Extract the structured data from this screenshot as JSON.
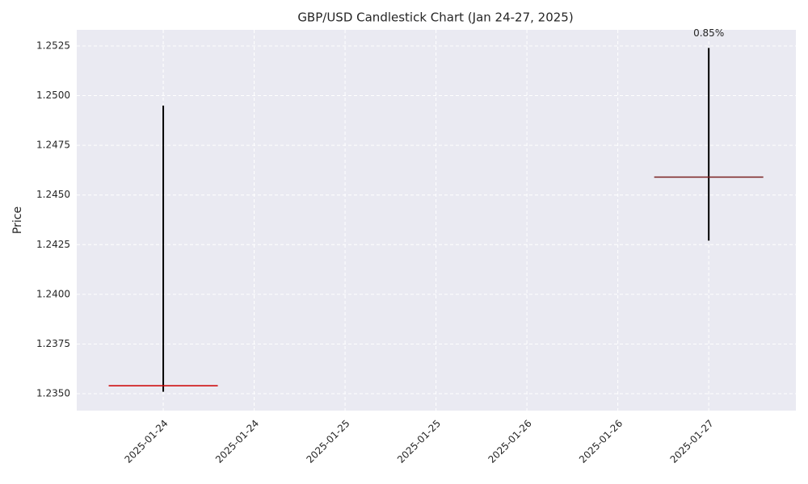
{
  "chart_data": {
    "type": "candlestick",
    "title": "GBP/USD Candlestick Chart (Jan 24-27, 2025)",
    "y_label": "Price",
    "x": [
      "2025-01-24",
      "2025-01-27"
    ],
    "open": [
      1.2354,
      1.2459
    ],
    "high": [
      1.2495,
      1.2524
    ],
    "low": [
      1.2351,
      1.2427
    ],
    "close": [
      1.2354,
      1.2459
    ],
    "colors": [
      "#cc0000",
      "#7a1f1f"
    ],
    "wick_color": "#000000",
    "annotations": [
      {
        "text": "0.85%",
        "x": "2025-01-27",
        "y": 1.2524
      }
    ],
    "xlim": [
      "2025-01-23T12:35:00Z",
      "2025-01-27T11:30:00Z"
    ],
    "xticks": [
      {
        "value": "2025-01-24T00:00:00Z",
        "label": "2025-01-24"
      },
      {
        "value": "2025-01-24T12:00:00Z",
        "label": "2025-01-24"
      },
      {
        "value": "2025-01-25T00:00:00Z",
        "label": "2025-01-25"
      },
      {
        "value": "2025-01-25T12:00:00Z",
        "label": "2025-01-25"
      },
      {
        "value": "2025-01-26T00:00:00Z",
        "label": "2025-01-26"
      },
      {
        "value": "2025-01-26T12:00:00Z",
        "label": "2025-01-26"
      },
      {
        "value": "2025-01-27T00:00:00Z",
        "label": "2025-01-27"
      }
    ],
    "ylim": [
      1.23415,
      1.25331
    ],
    "yticks": [
      {
        "value": 1.235,
        "label": "1.2350"
      },
      1.2375,
      {
        "value": 1.24,
        "label": "1.2400"
      },
      1.2425,
      {
        "value": 1.245,
        "label": "1.2450"
      },
      1.2475,
      {
        "value": 1.25,
        "label": "1.2500"
      },
      1.2525
    ],
    "grid": true
  }
}
